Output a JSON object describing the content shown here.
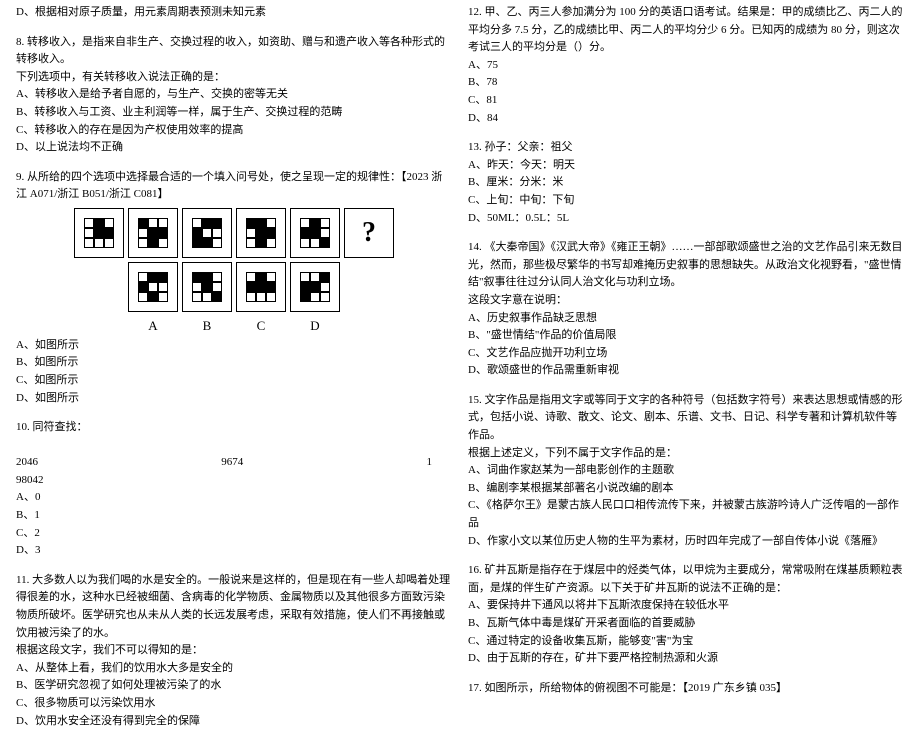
{
  "left": {
    "topLine": "D、根据相对原子质量，用元素周期表预测未知元素",
    "q8": {
      "stem1": "8. 转移收入，是指来自非生产、交换过程的收入，如资助、赠与和遗产收入等各种形式的转移收入。",
      "stem2": "下列选项中，有关转移收入说法正确的是：",
      "a": "A、转移收入是给予者自愿的，与生产、交换的密等无关",
      "b": "B、转移收入与工资、业主利润等一样，属于生产、交换过程的范畴",
      "c": "C、转移收入的存在是因为产权使用效率的提高",
      "d": "D、以上说法均不正确"
    },
    "q9": {
      "stem": "9. 从所给的四个选项中选择最合适的一个填入问号处，使之呈现一定的规律性：【2023 浙江 A071/浙江 B051/浙江 C081】",
      "labels": [
        "A",
        "B",
        "C",
        "D"
      ],
      "a": "A、如图所示",
      "b": "B、如图所示",
      "c": "C、如图所示",
      "d": "D、如图所示"
    },
    "q10": {
      "stem": "10. 同符查找：",
      "n1": "2046",
      "n2": "9674",
      "n3": "1",
      "n4": "98042",
      "a": "A、0",
      "b": "B、1",
      "c": "C、2",
      "d": "D、3"
    },
    "q11": {
      "stem1": "11. 大多数人以为我们喝的水是安全的。一般说来是这样的，但是现在有一些人却喝着处理得很差的水，这种水已经被细菌、含病毒的化学物质、金属物质以及其他很多方面致污染物质所破坏。医学研究也从未从人类的长远发展考虑，采取有效措施，使人们不再接触或饮用被污染了的水。",
      "stem2": "根据这段文字，我们不可以得知的是：",
      "a": "A、从整体上看，我们的饮用水大多是安全的",
      "b": "B、医学研究忽视了如何处理被污染了的水",
      "c": "C、很多物质可以污染饮用水",
      "d": "D、饮用水安全还没有得到完全的保障"
    }
  },
  "right": {
    "q12": {
      "stem": "12. 甲、乙、丙三人参加满分为 100 分的英语口语考试。结果是：甲的成绩比乙、丙二人的平均分多 7.5 分，乙的成绩比甲、丙二人的平均分少 6 分。已知丙的成绩为 80 分，则这次考试三人的平均分是（）分。",
      "a": "A、75",
      "b": "B、78",
      "c": "C、81",
      "d": "D、84"
    },
    "q13": {
      "stem": "13. 孙子：父亲：祖父",
      "a": "A、昨天：今天：明天",
      "b": "B、厘米：分米：米",
      "c": "C、上旬：中旬：下旬",
      "d": "D、50ML：0.5L：5L"
    },
    "q14": {
      "stem1": "14. 《大秦帝国》《汉武大帝》《雍正王朝》……一部部歌颂盛世之治的文艺作品引来无数目光，然而，那些极尽繁华的书写却难掩历史叙事的思想缺失。从政治文化视野看，\"盛世情结\"叙事往往过分认同人治文化与功利立场。",
      "stem2": "这段文字意在说明：",
      "a": "A、历史叙事作品缺乏思想",
      "b": "B、\"盛世情结\"作品的价值局限",
      "c": "C、文艺作品应抛开功利立场",
      "d": "D、歌颂盛世的作品需重新审视"
    },
    "q15": {
      "stem1": "15. 文字作品是指用文字或等同于文字的各种符号（包括数字符号）来表达思想或情感的形式，包括小说、诗歌、散文、论文、剧本、乐谱、文书、日记、科学专著和计算机软件等作品。",
      "stem2": "根据上述定义，下列不属于文字作品的是：",
      "a": "A、词曲作家赵某为一部电影创作的主题歌",
      "b": "B、编剧李某根据某部著名小说改编的剧本",
      "c": "C、《格萨尔王》是蒙古族人民口口相传流传下来，并被蒙古族游吟诗人广泛传唱的一部作品",
      "d": "D、作家小文以某位历史人物的生平为素材，历时四年完成了一部自传体小说《落雁》"
    },
    "q16": {
      "stem": "16. 矿井瓦斯是指存在于煤层中的烃类气体，以甲烷为主要成分，常常吸附在煤基质颗粒表面，是煤的伴生矿产资源。以下关于矿井瓦斯的说法不正确的是：",
      "a": "A、要保持井下通风以将井下瓦斯浓度保持在较低水平",
      "b": "B、瓦斯气体中毒是煤矿开采者面临的首要威胁",
      "c": "C、通过特定的设备收集瓦斯，能够变\"害\"为宝",
      "d": "D、由于瓦斯的存在，矿井下要严格控制热源和火源"
    },
    "q17": {
      "stem": "17. 如图所示，所给物体的俯视图不可能是：【2019 广东乡镇 035】"
    }
  },
  "figPatterns": {
    "top": [
      "wbw wbb www",
      "bww wbb wbw",
      "wbb bww bbw",
      "bbw wbb wbw",
      "wbw bbw wwb"
    ],
    "bottom": [
      "wbb bww wbw",
      "bbw wbw wwb",
      "wbw bbb www",
      "wwb bbw bww"
    ]
  }
}
